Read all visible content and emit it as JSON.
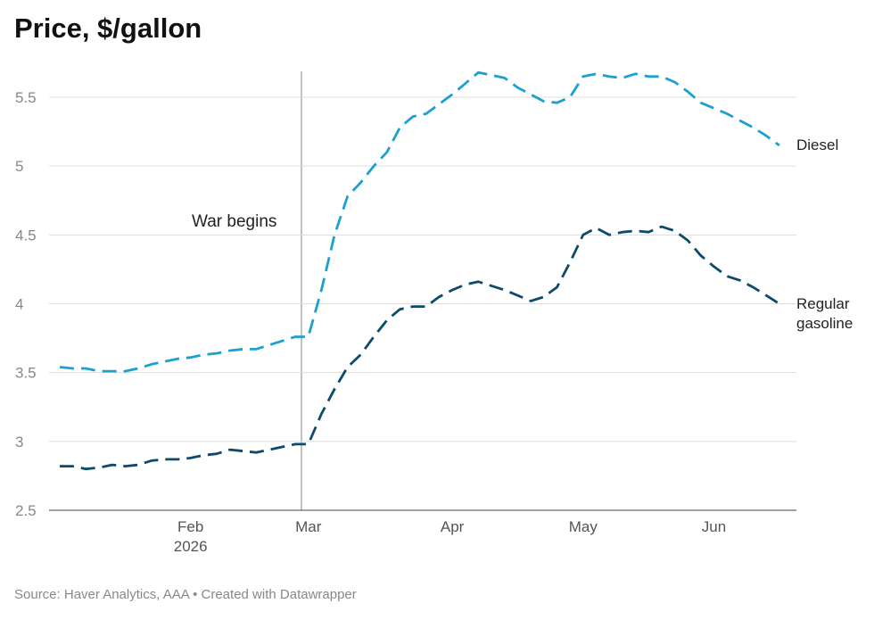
{
  "chart_data": {
    "type": "line",
    "title": "Price, $/gallon",
    "source": "Source: Haver Analytics, AAA • Created with Datawrapper",
    "annotation": "War begins",
    "categories": [
      null,
      null,
      null,
      null,
      null,
      null,
      null,
      null,
      null,
      null,
      "Feb 2026",
      null,
      null,
      null,
      null,
      null,
      null,
      null,
      null,
      "Mar",
      null,
      null,
      null,
      null,
      null,
      null,
      null,
      null,
      null,
      null,
      "Apr",
      null,
      null,
      null,
      null,
      null,
      null,
      null,
      null,
      null,
      "May",
      null,
      null,
      null,
      null,
      null,
      null,
      null,
      null,
      null,
      "Jun",
      null,
      null,
      null,
      null,
      null
    ],
    "series": [
      {
        "name": "Diesel",
        "color": "#1ba1cf",
        "values": [
          3.54,
          3.53,
          3.53,
          3.51,
          3.51,
          3.51,
          3.53,
          3.56,
          3.58,
          3.6,
          3.61,
          3.63,
          3.64,
          3.66,
          3.67,
          3.67,
          3.7,
          3.73,
          3.76,
          3.76,
          4.1,
          4.5,
          4.78,
          4.88,
          5.0,
          5.1,
          5.28,
          5.36,
          5.38,
          5.45,
          5.52,
          5.6,
          5.68,
          5.66,
          5.64,
          5.57,
          5.52,
          5.47,
          5.46,
          5.5,
          5.65,
          5.67,
          5.65,
          5.64,
          5.67,
          5.65,
          5.65,
          5.61,
          5.54,
          5.46,
          5.42,
          5.38,
          5.33,
          5.28,
          5.22,
          5.15
        ]
      },
      {
        "name": "Regular gasoline",
        "color": "#0d4a6b",
        "values": [
          2.82,
          2.82,
          2.8,
          2.81,
          2.83,
          2.82,
          2.83,
          2.86,
          2.87,
          2.87,
          2.88,
          2.9,
          2.91,
          2.94,
          2.93,
          2.92,
          2.94,
          2.96,
          2.98,
          2.98,
          3.2,
          3.38,
          3.54,
          3.63,
          3.76,
          3.88,
          3.96,
          3.98,
          3.98,
          4.05,
          4.1,
          4.14,
          4.16,
          4.13,
          4.1,
          4.06,
          4.02,
          4.05,
          4.12,
          4.3,
          4.5,
          4.55,
          4.5,
          4.52,
          4.53,
          4.52,
          4.56,
          4.53,
          4.46,
          4.35,
          4.27,
          4.2,
          4.17,
          4.12,
          4.06,
          4.0
        ]
      }
    ],
    "ylim": [
      2.5,
      5.5
    ],
    "yticks": [
      2.5,
      3,
      3.5,
      4,
      4.5,
      5,
      5.5
    ],
    "grid": true
  }
}
